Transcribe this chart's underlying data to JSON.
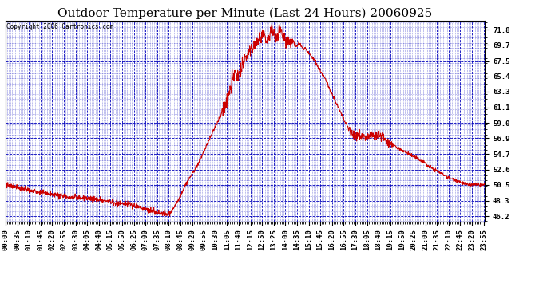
{
  "title": "Outdoor Temperature per Minute (Last 24 Hours) 20060925",
  "copyright": "Copyright 2006 Cartronics.com",
  "y_ticks": [
    46.2,
    48.3,
    50.5,
    52.6,
    54.7,
    56.9,
    59.0,
    61.1,
    63.3,
    65.4,
    67.5,
    69.7,
    71.8
  ],
  "x_tick_labels": [
    "00:00",
    "00:35",
    "01:10",
    "01:45",
    "02:20",
    "02:55",
    "03:30",
    "04:05",
    "04:40",
    "05:15",
    "05:50",
    "06:25",
    "07:00",
    "07:35",
    "08:10",
    "08:45",
    "09:20",
    "09:55",
    "10:30",
    "11:05",
    "11:40",
    "12:15",
    "12:50",
    "13:25",
    "14:00",
    "14:35",
    "15:10",
    "15:45",
    "16:20",
    "16:55",
    "17:30",
    "18:05",
    "18:40",
    "19:15",
    "19:50",
    "20:25",
    "21:00",
    "21:35",
    "22:10",
    "22:45",
    "23:20",
    "23:55"
  ],
  "line_color": "#cc0000",
  "grid_color": "#0000bb",
  "bg_color": "#ffffff",
  "title_fontsize": 11,
  "tick_fontsize": 6.5,
  "ylim": [
    45.5,
    73.0
  ],
  "xlim": [
    0,
    1439
  ],
  "curve_points": [
    [
      0,
      50.5
    ],
    [
      30,
      50.2
    ],
    [
      60,
      49.8
    ],
    [
      90,
      49.6
    ],
    [
      120,
      49.3
    ],
    [
      150,
      49.1
    ],
    [
      180,
      48.9
    ],
    [
      210,
      48.8
    ],
    [
      240,
      48.7
    ],
    [
      270,
      48.5
    ],
    [
      300,
      48.3
    ],
    [
      330,
      48.0
    ],
    [
      360,
      47.9
    ],
    [
      390,
      47.6
    ],
    [
      400,
      47.4
    ],
    [
      410,
      47.3
    ],
    [
      420,
      47.2
    ],
    [
      430,
      47.0
    ],
    [
      440,
      46.9
    ],
    [
      450,
      46.8
    ],
    [
      460,
      46.7
    ],
    [
      470,
      46.6
    ],
    [
      480,
      46.5
    ],
    [
      490,
      46.5
    ],
    [
      500,
      47.0
    ],
    [
      510,
      47.8
    ],
    [
      520,
      48.5
    ],
    [
      530,
      49.5
    ],
    [
      540,
      50.5
    ],
    [
      560,
      52.0
    ],
    [
      580,
      53.5
    ],
    [
      600,
      55.5
    ],
    [
      620,
      57.5
    ],
    [
      640,
      59.5
    ],
    [
      655,
      61.0
    ],
    [
      660,
      61.5
    ],
    [
      665,
      62.0
    ],
    [
      670,
      63.0
    ],
    [
      675,
      64.0
    ],
    [
      680,
      64.8
    ],
    [
      685,
      65.4
    ],
    [
      690,
      65.8
    ],
    [
      695,
      65.2
    ],
    [
      700,
      65.8
    ],
    [
      705,
      66.3
    ],
    [
      710,
      67.0
    ],
    [
      720,
      67.8
    ],
    [
      730,
      68.5
    ],
    [
      740,
      69.2
    ],
    [
      750,
      69.8
    ],
    [
      760,
      70.3
    ],
    [
      770,
      70.8
    ],
    [
      775,
      71.0
    ],
    [
      780,
      70.5
    ],
    [
      785,
      70.0
    ],
    [
      790,
      70.8
    ],
    [
      795,
      71.5
    ],
    [
      800,
      71.8
    ],
    [
      805,
      71.2
    ],
    [
      810,
      70.8
    ],
    [
      815,
      71.0
    ],
    [
      820,
      71.5
    ],
    [
      825,
      71.8
    ],
    [
      830,
      71.3
    ],
    [
      835,
      70.8
    ],
    [
      840,
      70.5
    ],
    [
      845,
      70.2
    ],
    [
      850,
      70.5
    ],
    [
      855,
      70.0
    ],
    [
      860,
      70.3
    ],
    [
      865,
      70.0
    ],
    [
      870,
      69.7
    ],
    [
      875,
      69.5
    ],
    [
      880,
      69.8
    ],
    [
      885,
      69.7
    ],
    [
      890,
      69.3
    ],
    [
      895,
      69.0
    ],
    [
      900,
      69.3
    ],
    [
      905,
      68.8
    ],
    [
      910,
      68.5
    ],
    [
      915,
      68.3
    ],
    [
      920,
      68.0
    ],
    [
      925,
      67.8
    ],
    [
      930,
      67.5
    ],
    [
      935,
      67.0
    ],
    [
      940,
      66.5
    ],
    [
      945,
      66.2
    ],
    [
      950,
      65.8
    ],
    [
      955,
      65.4
    ],
    [
      960,
      65.0
    ],
    [
      965,
      64.5
    ],
    [
      970,
      64.0
    ],
    [
      975,
      63.5
    ],
    [
      980,
      63.0
    ],
    [
      985,
      62.5
    ],
    [
      990,
      62.0
    ],
    [
      995,
      61.5
    ],
    [
      1000,
      61.0
    ],
    [
      1010,
      60.0
    ],
    [
      1020,
      59.0
    ],
    [
      1030,
      58.3
    ],
    [
      1035,
      57.8
    ],
    [
      1040,
      57.5
    ],
    [
      1045,
      57.2
    ],
    [
      1050,
      57.0
    ],
    [
      1055,
      57.3
    ],
    [
      1060,
      57.5
    ],
    [
      1065,
      57.2
    ],
    [
      1070,
      57.0
    ],
    [
      1075,
      57.2
    ],
    [
      1080,
      57.0
    ],
    [
      1085,
      56.8
    ],
    [
      1090,
      57.0
    ],
    [
      1095,
      57.2
    ],
    [
      1100,
      57.5
    ],
    [
      1105,
      57.3
    ],
    [
      1110,
      57.0
    ],
    [
      1115,
      57.2
    ],
    [
      1120,
      57.5
    ],
    [
      1125,
      57.3
    ],
    [
      1130,
      57.2
    ],
    [
      1135,
      57.0
    ],
    [
      1140,
      56.8
    ],
    [
      1145,
      56.5
    ],
    [
      1150,
      56.3
    ],
    [
      1160,
      56.0
    ],
    [
      1170,
      55.8
    ],
    [
      1180,
      55.5
    ],
    [
      1190,
      55.3
    ],
    [
      1200,
      55.0
    ],
    [
      1210,
      54.8
    ],
    [
      1220,
      54.5
    ],
    [
      1230,
      54.2
    ],
    [
      1240,
      54.0
    ],
    [
      1250,
      53.8
    ],
    [
      1260,
      53.5
    ],
    [
      1270,
      53.0
    ],
    [
      1280,
      52.8
    ],
    [
      1290,
      52.5
    ],
    [
      1300,
      52.3
    ],
    [
      1310,
      52.0
    ],
    [
      1320,
      51.8
    ],
    [
      1330,
      51.5
    ],
    [
      1340,
      51.3
    ],
    [
      1350,
      51.2
    ],
    [
      1360,
      51.0
    ],
    [
      1370,
      50.8
    ],
    [
      1380,
      50.6
    ],
    [
      1390,
      50.5
    ],
    [
      1400,
      50.5
    ],
    [
      1410,
      50.5
    ],
    [
      1420,
      50.5
    ],
    [
      1430,
      50.5
    ],
    [
      1439,
      50.5
    ]
  ]
}
